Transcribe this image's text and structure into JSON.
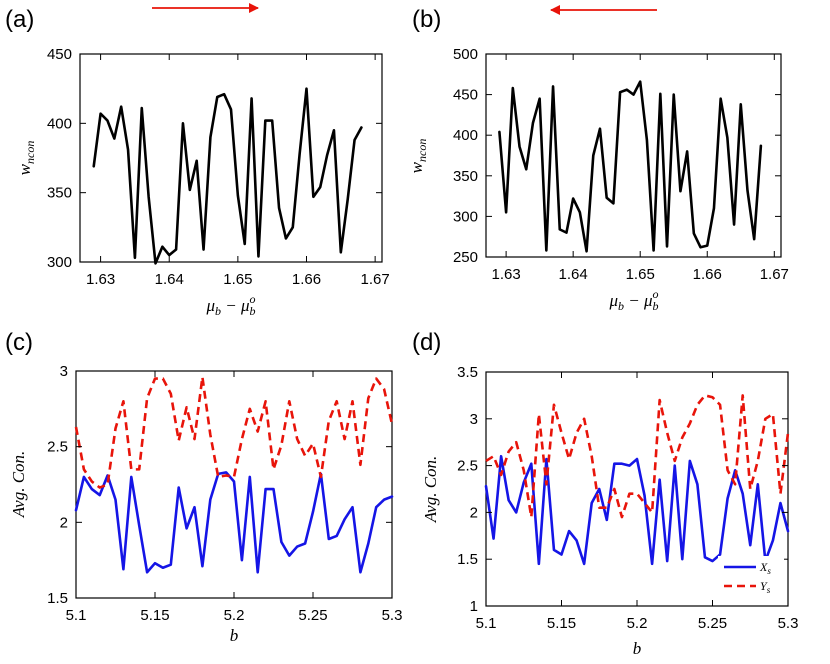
{
  "figure": {
    "arrow_color": "#e8140a",
    "arrows": [
      {
        "panel": "a",
        "direction": "right"
      },
      {
        "panel": "b",
        "direction": "left"
      }
    ]
  },
  "chart_data": [
    {
      "id": "a",
      "panel_label": "(a)",
      "type": "line",
      "xlabel": "μ_b − μ_b^o",
      "ylabel": "w_ncon",
      "xlim": [
        1.627,
        1.671
      ],
      "ylim": [
        300,
        450
      ],
      "xticks": [
        1.63,
        1.64,
        1.65,
        1.66,
        1.67
      ],
      "xtick_labels": [
        "1.63",
        "1.64",
        "1.65",
        "1.66",
        "1.67"
      ],
      "yticks": [
        300,
        350,
        400,
        450
      ],
      "ytick_labels": [
        "300",
        "350",
        "400",
        "450"
      ],
      "series": [
        {
          "name": "w_ncon",
          "color": "#000000",
          "dash": "",
          "x": [
            1.629,
            1.63,
            1.631,
            1.632,
            1.633,
            1.634,
            1.635,
            1.636,
            1.637,
            1.638,
            1.639,
            1.64,
            1.641,
            1.642,
            1.643,
            1.644,
            1.645,
            1.646,
            1.647,
            1.648,
            1.649,
            1.65,
            1.651,
            1.652,
            1.653,
            1.654,
            1.655,
            1.656,
            1.657,
            1.658,
            1.659,
            1.66,
            1.661,
            1.662,
            1.663,
            1.664,
            1.665,
            1.666,
            1.667,
            1.668
          ],
          "y": [
            369,
            407,
            402,
            389,
            412,
            381,
            303,
            411,
            347,
            299,
            311,
            305,
            309,
            400,
            352,
            373,
            309,
            390,
            419,
            421,
            410,
            348,
            313,
            418,
            304,
            402,
            402,
            339,
            317,
            325,
            378,
            425,
            347,
            354,
            377,
            395,
            307,
            345,
            388,
            397
          ]
        }
      ]
    },
    {
      "id": "b",
      "panel_label": "(b)",
      "type": "line",
      "xlabel": "μ_b − μ_b^o",
      "ylabel": "w_ncon",
      "xlim": [
        1.627,
        1.671
      ],
      "ylim": [
        250,
        500
      ],
      "xticks": [
        1.63,
        1.64,
        1.65,
        1.66,
        1.67
      ],
      "xtick_labels": [
        "1.63",
        "1.64",
        "1.65",
        "1.66",
        "1.67"
      ],
      "yticks": [
        250,
        300,
        350,
        400,
        450,
        500
      ],
      "ytick_labels": [
        "250",
        "300",
        "350",
        "400",
        "450",
        "500"
      ],
      "series": [
        {
          "name": "w_ncon",
          "color": "#000000",
          "dash": "",
          "x": [
            1.629,
            1.63,
            1.631,
            1.632,
            1.633,
            1.634,
            1.635,
            1.636,
            1.637,
            1.638,
            1.639,
            1.64,
            1.641,
            1.642,
            1.643,
            1.644,
            1.645,
            1.646,
            1.647,
            1.648,
            1.649,
            1.65,
            1.651,
            1.652,
            1.653,
            1.654,
            1.655,
            1.656,
            1.657,
            1.658,
            1.659,
            1.66,
            1.661,
            1.662,
            1.663,
            1.664,
            1.665,
            1.666,
            1.667,
            1.668
          ],
          "y": [
            404,
            305,
            458,
            386,
            358,
            415,
            445,
            258,
            460,
            284,
            280,
            322,
            305,
            257,
            375,
            408,
            323,
            316,
            453,
            456,
            450,
            466,
            394,
            258,
            451,
            263,
            450,
            331,
            380,
            279,
            262,
            264,
            310,
            445,
            397,
            290,
            438,
            332,
            272,
            387
          ]
        }
      ]
    },
    {
      "id": "c",
      "panel_label": "(c)",
      "type": "line",
      "xlabel": "b",
      "ylabel": "Avg. Con.",
      "xlim": [
        5.1,
        5.3
      ],
      "ylim": [
        1.5,
        3.0
      ],
      "xticks": [
        5.1,
        5.15,
        5.2,
        5.25,
        5.3
      ],
      "xtick_labels": [
        "5.1",
        "5.15",
        "5.2",
        "5.25",
        "5.3"
      ],
      "yticks": [
        1.5,
        2.0,
        2.5,
        3.0
      ],
      "ytick_labels": [
        "1.5",
        "2",
        "2.5",
        "3"
      ],
      "series": [
        {
          "name": "X_s",
          "color": "#1515e6",
          "dash": "",
          "x": [
            5.1,
            5.105,
            5.11,
            5.115,
            5.12,
            5.125,
            5.13,
            5.135,
            5.14,
            5.145,
            5.15,
            5.155,
            5.16,
            5.165,
            5.17,
            5.175,
            5.18,
            5.185,
            5.19,
            5.195,
            5.2,
            5.205,
            5.21,
            5.215,
            5.22,
            5.225,
            5.23,
            5.235,
            5.24,
            5.245,
            5.25,
            5.255,
            5.26,
            5.265,
            5.27,
            5.275,
            5.28,
            5.285,
            5.29,
            5.295,
            5.3
          ],
          "y": [
            2.08,
            2.3,
            2.22,
            2.18,
            2.31,
            2.15,
            1.69,
            2.3,
            1.98,
            1.67,
            1.73,
            1.7,
            1.72,
            2.23,
            1.96,
            2.1,
            1.71,
            2.15,
            2.32,
            2.33,
            2.27,
            1.75,
            2.3,
            1.67,
            2.22,
            2.22,
            1.87,
            1.78,
            1.84,
            1.86,
            2.07,
            2.32,
            1.89,
            1.91,
            2.02,
            2.1,
            1.67,
            1.86,
            2.1,
            2.15,
            2.17
          ]
        },
        {
          "name": "Y_s",
          "color": "#e8140a",
          "dash": "8 5",
          "x": [
            5.1,
            5.105,
            5.11,
            5.115,
            5.12,
            5.125,
            5.13,
            5.135,
            5.14,
            5.145,
            5.15,
            5.155,
            5.16,
            5.165,
            5.17,
            5.175,
            5.18,
            5.185,
            5.19,
            5.195,
            5.2,
            5.205,
            5.21,
            5.215,
            5.22,
            5.225,
            5.23,
            5.235,
            5.24,
            5.245,
            5.25,
            5.255,
            5.26,
            5.265,
            5.27,
            5.275,
            5.28,
            5.285,
            5.29,
            5.295,
            5.3
          ],
          "y": [
            2.63,
            2.35,
            2.27,
            2.23,
            2.25,
            2.62,
            2.8,
            2.35,
            2.35,
            2.82,
            2.95,
            2.95,
            2.85,
            2.54,
            2.76,
            2.55,
            2.96,
            2.58,
            2.3,
            2.31,
            2.3,
            2.55,
            2.75,
            2.6,
            2.8,
            2.35,
            2.51,
            2.8,
            2.55,
            2.44,
            2.52,
            2.3,
            2.67,
            2.8,
            2.55,
            2.8,
            2.38,
            2.82,
            2.95,
            2.88,
            2.65
          ]
        }
      ]
    },
    {
      "id": "d",
      "panel_label": "(d)",
      "type": "line",
      "xlabel": "b",
      "ylabel": "Avg. Con.",
      "xlim": [
        5.1,
        5.3
      ],
      "ylim": [
        1.0,
        3.5
      ],
      "xticks": [
        5.1,
        5.15,
        5.2,
        5.25,
        5.3
      ],
      "xtick_labels": [
        "5.1",
        "5.15",
        "5.2",
        "5.25",
        "5.3"
      ],
      "yticks": [
        1.0,
        1.5,
        2.0,
        2.5,
        3.0,
        3.5
      ],
      "ytick_labels": [
        "1",
        "1.5",
        "2",
        "2.5",
        "3",
        "3.5"
      ],
      "legend": {
        "position": "bottom-right",
        "entries": [
          "X_s",
          "Y_s"
        ]
      },
      "series": [
        {
          "name": "X_s",
          "color": "#1515e6",
          "dash": "",
          "x": [
            5.1,
            5.105,
            5.11,
            5.115,
            5.12,
            5.125,
            5.13,
            5.135,
            5.14,
            5.145,
            5.15,
            5.155,
            5.16,
            5.165,
            5.17,
            5.175,
            5.18,
            5.185,
            5.19,
            5.195,
            5.2,
            5.205,
            5.21,
            5.215,
            5.22,
            5.225,
            5.23,
            5.235,
            5.24,
            5.245,
            5.25,
            5.255,
            5.26,
            5.265,
            5.27,
            5.275,
            5.28,
            5.285,
            5.29,
            5.295,
            5.3
          ],
          "y": [
            2.28,
            1.72,
            2.6,
            2.13,
            2.0,
            2.32,
            2.52,
            1.45,
            2.57,
            1.6,
            1.55,
            1.8,
            1.7,
            1.45,
            2.1,
            2.25,
            1.92,
            2.52,
            2.52,
            2.5,
            2.57,
            2.18,
            1.45,
            2.35,
            1.48,
            2.5,
            1.5,
            2.55,
            2.3,
            1.52,
            1.48,
            1.55,
            2.15,
            2.45,
            2.2,
            1.65,
            2.3,
            1.48,
            1.7,
            2.1,
            1.8
          ]
        },
        {
          "name": "Y_s",
          "color": "#e8140a",
          "dash": "8 5",
          "x": [
            5.1,
            5.105,
            5.11,
            5.115,
            5.12,
            5.125,
            5.13,
            5.135,
            5.14,
            5.145,
            5.15,
            5.155,
            5.16,
            5.165,
            5.17,
            5.175,
            5.18,
            5.185,
            5.19,
            5.195,
            5.2,
            5.205,
            5.21,
            5.215,
            5.22,
            5.225,
            5.23,
            5.235,
            5.24,
            5.245,
            5.25,
            5.255,
            5.26,
            5.265,
            5.27,
            5.275,
            5.28,
            5.285,
            5.29,
            5.295,
            5.3
          ],
          "y": [
            2.55,
            2.6,
            2.4,
            2.65,
            2.75,
            2.45,
            1.95,
            3.05,
            2.3,
            3.15,
            2.85,
            2.57,
            2.85,
            3.0,
            2.6,
            2.05,
            2.05,
            2.25,
            1.95,
            2.2,
            2.2,
            2.1,
            2.0,
            3.2,
            2.85,
            2.55,
            2.8,
            2.95,
            3.15,
            3.25,
            3.23,
            3.15,
            2.45,
            2.3,
            3.25,
            2.25,
            2.55,
            3.0,
            3.05,
            2.2,
            2.85
          ]
        }
      ]
    }
  ]
}
